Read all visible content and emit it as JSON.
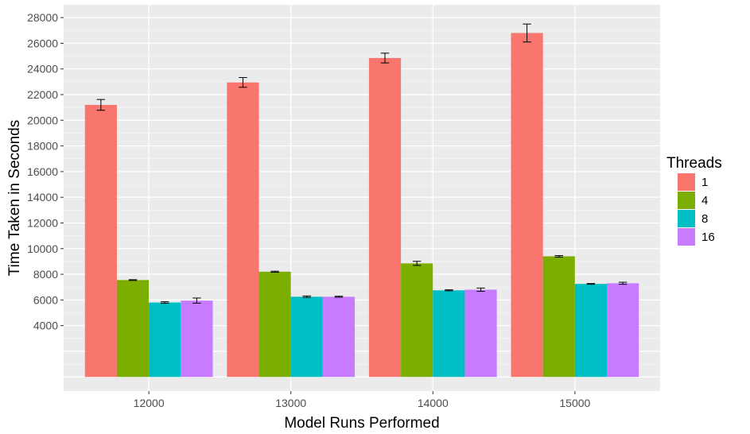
{
  "chart_data": {
    "type": "bar",
    "xlabel": "Model Runs Performed",
    "ylabel": "Time Taken in Seconds",
    "categories": [
      "12000",
      "13000",
      "14000",
      "15000"
    ],
    "y_ticks": [
      4000,
      6000,
      8000,
      10000,
      12000,
      14000,
      16000,
      18000,
      20000,
      22000,
      24000,
      26000,
      28000
    ],
    "y_tick_labels": [
      "4000",
      "6000",
      "8000",
      "10000",
      "12000",
      "14000",
      "16000",
      "18000",
      "20000",
      "22000",
      "24000",
      "26000",
      "28000"
    ],
    "ylim": [
      -1100,
      29000
    ],
    "grid": true,
    "legend": {
      "title": "Threads",
      "placement": "right"
    },
    "series": [
      {
        "name": "1",
        "color": "#F8766D",
        "values": [
          21200,
          22950,
          24850,
          26800
        ],
        "errors": [
          420,
          380,
          380,
          700
        ]
      },
      {
        "name": "4",
        "color": "#7CAE00",
        "values": [
          7550,
          8200,
          8850,
          9400
        ],
        "errors": [
          30,
          40,
          160,
          60
        ]
      },
      {
        "name": "8",
        "color": "#00BFC4",
        "values": [
          5800,
          6250,
          6750,
          7250
        ],
        "errors": [
          60,
          60,
          40,
          30
        ]
      },
      {
        "name": "16",
        "color": "#C77CFF",
        "values": [
          5950,
          6250,
          6800,
          7300
        ],
        "errors": [
          200,
          40,
          130,
          80
        ]
      }
    ]
  }
}
